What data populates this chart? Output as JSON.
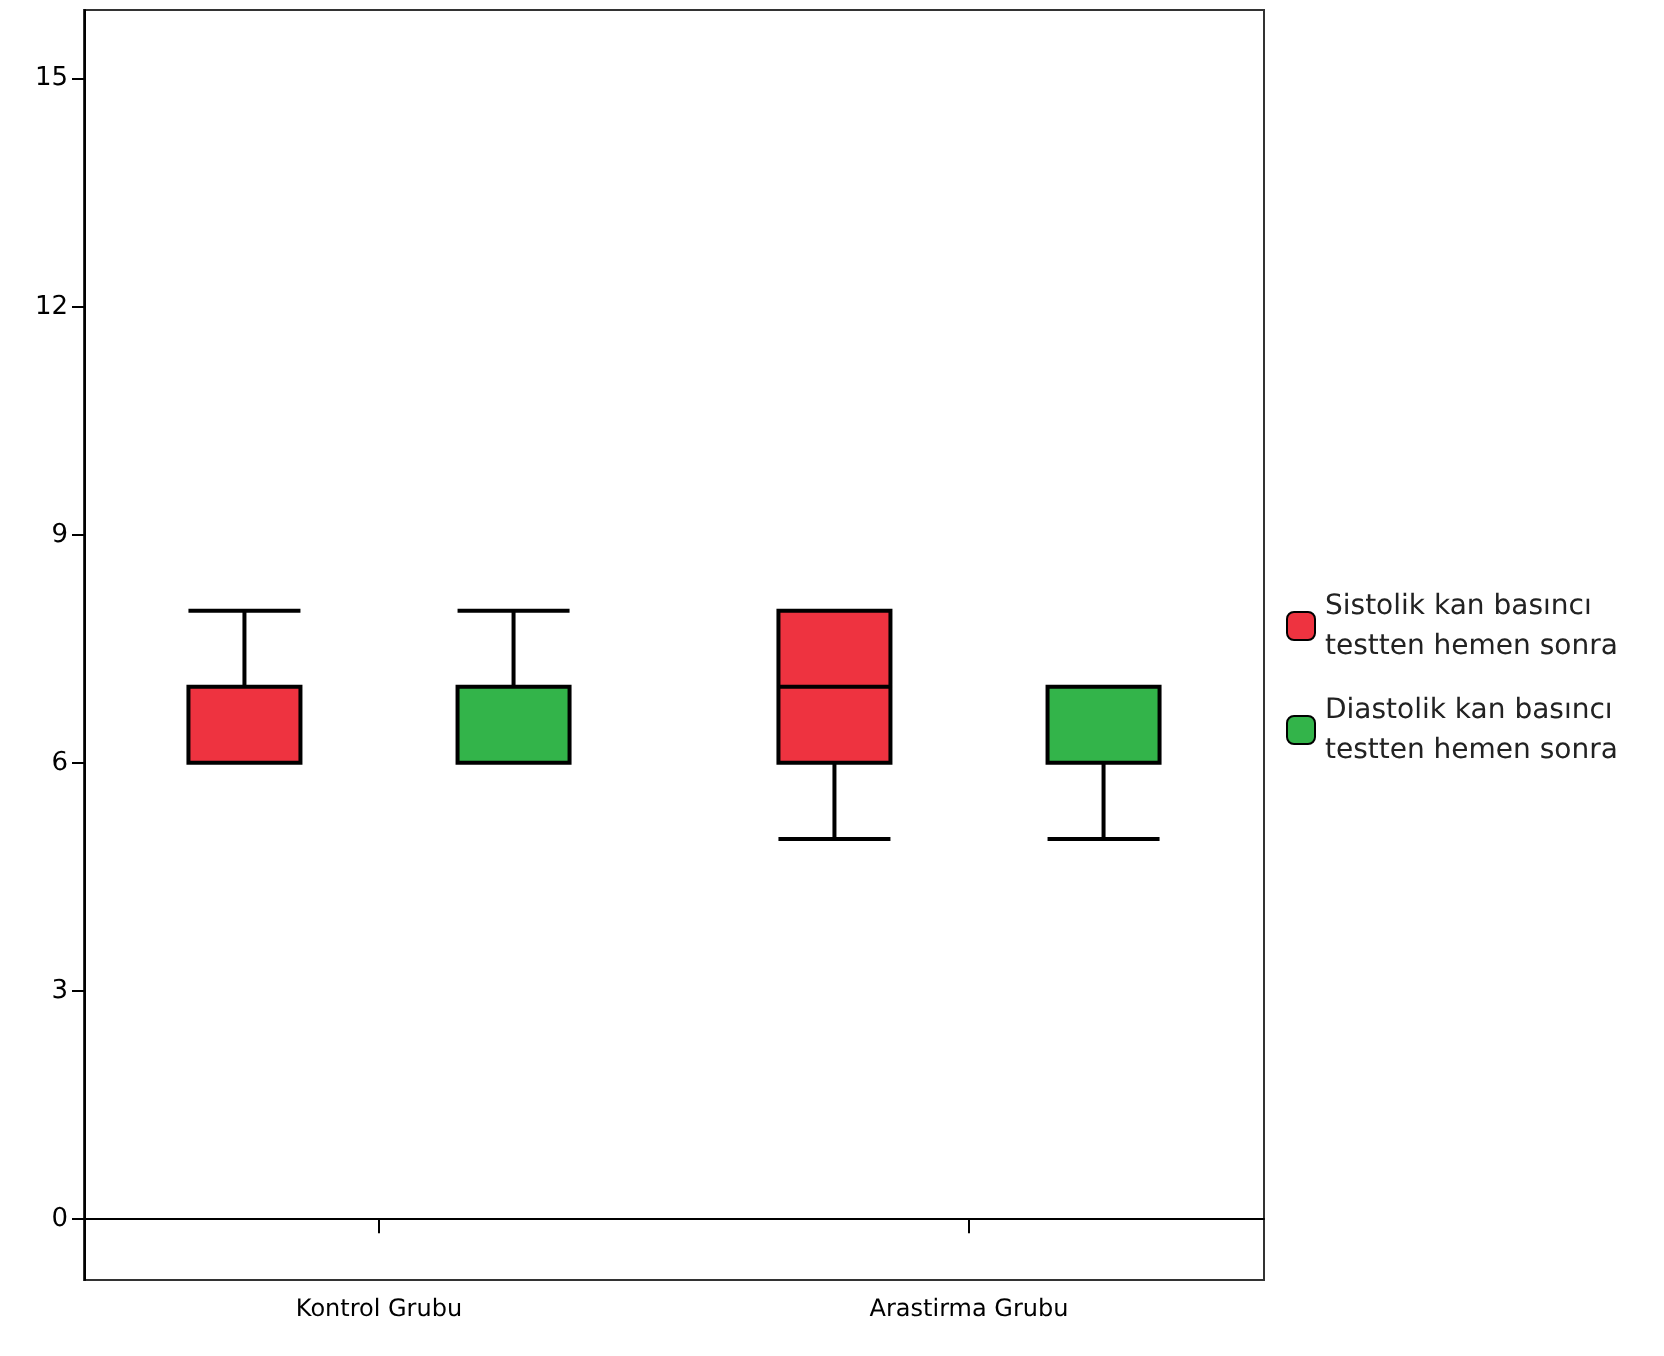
{
  "chart_data": {
    "type": "box",
    "categories": [
      "Kontrol Grubu",
      "Arastirma Grubu"
    ],
    "series": [
      {
        "name": "Sistolik kan basıncı testten hemen sonra",
        "color": "#ee3340",
        "boxes": [
          {
            "low": 6,
            "q1": 6,
            "median": 7,
            "q3": 7,
            "high": 8
          },
          {
            "low": 5,
            "q1": 6,
            "median": 7,
            "q3": 8,
            "high": 8
          }
        ]
      },
      {
        "name": "Diastolik kan basıncı testten hemen sonra",
        "color": "#33b44a",
        "boxes": [
          {
            "low": 6,
            "q1": 6,
            "median": 6,
            "q3": 7,
            "high": 8
          },
          {
            "low": 5,
            "q1": 6,
            "median": 7,
            "q3": 7,
            "high": 7
          }
        ]
      }
    ],
    "ylim": [
      -0.8,
      15.9
    ],
    "yticks": [
      0,
      3,
      6,
      9,
      12,
      15
    ],
    "legend": "right"
  }
}
